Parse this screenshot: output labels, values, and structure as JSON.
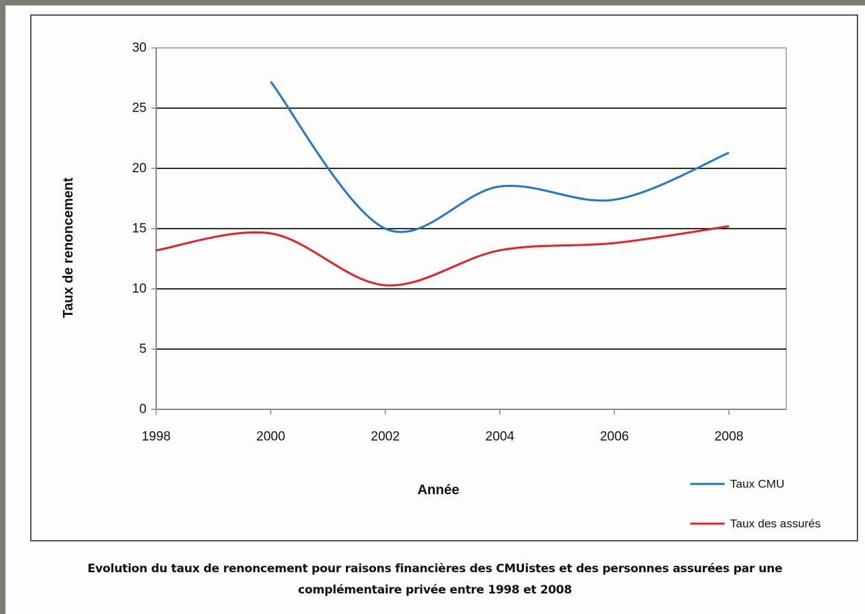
{
  "chart_data": {
    "type": "line",
    "x": [
      1998,
      2000,
      2002,
      2004,
      2006,
      2008
    ],
    "series": [
      {
        "name": "Taux CMU",
        "color": "#1f77c8",
        "values": [
          null,
          27.2,
          15.0,
          18.5,
          17.4,
          21.3
        ]
      },
      {
        "name": "Taux des assurés",
        "color": "#ee1c25",
        "values": [
          13.2,
          14.6,
          10.3,
          13.2,
          13.8,
          15.2
        ]
      }
    ],
    "xlim": [
      1998,
      2009
    ],
    "xticks": [
      1998,
      2000,
      2002,
      2004,
      2006,
      2008
    ],
    "ylim": [
      0,
      30
    ],
    "yticks": [
      0,
      5,
      10,
      15,
      20,
      25,
      30
    ],
    "grid": true,
    "legend": "bottom-right",
    "xlabel": "Année",
    "ylabel": "Taux de renoncement",
    "caption": "Evolution du taux de renoncement pour raisons financières des CMUistes et des personnes assurées par une complémentaire privée entre 1998 et 2008"
  }
}
